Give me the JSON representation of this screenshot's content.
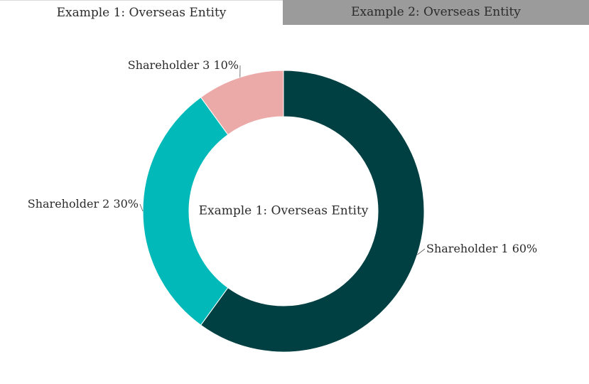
{
  "tabs": [
    {
      "label": "Example 1: Overseas Entity",
      "active": true
    },
    {
      "label": "Example 2: Overseas Entity",
      "active": false
    }
  ],
  "chart_data": {
    "type": "pie",
    "donut": true,
    "center_label": "Example 1: Overseas Entity",
    "categories": [
      "Shareholder 1",
      "Shareholder 2",
      "Shareholder 3"
    ],
    "values": [
      60,
      30,
      10
    ],
    "unit": "%",
    "colors": [
      "#003f42",
      "#00b9b8",
      "#eba9a7"
    ],
    "labels": [
      "Shareholder 1 60%",
      "Shareholder 2 30%",
      "Shareholder 3 10%"
    ]
  }
}
